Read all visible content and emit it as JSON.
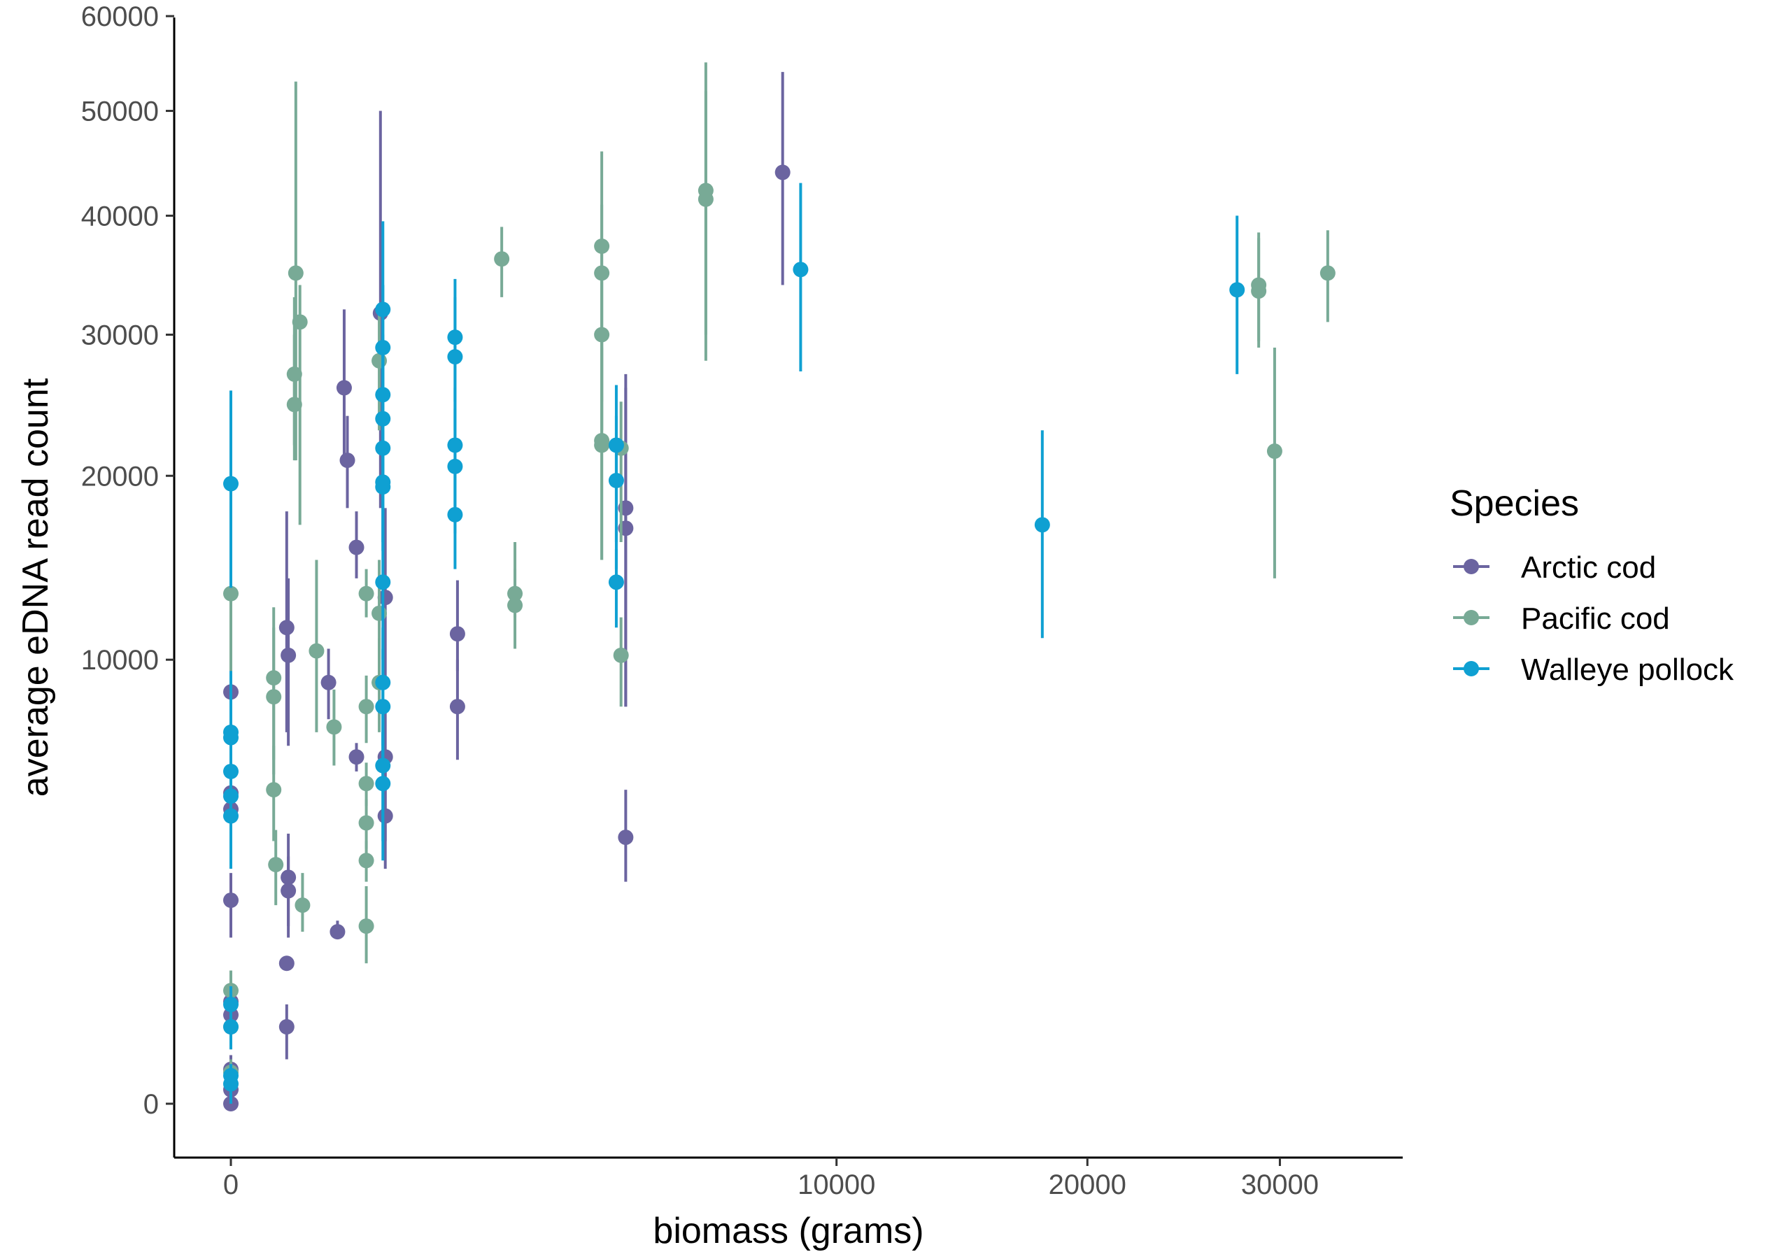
{
  "chart_data": {
    "type": "scatter",
    "title": "",
    "xlabel": "biomass (grams)",
    "ylabel": "average eDNA read count",
    "x_scale": "sqrt",
    "y_scale": "sqrt",
    "xlim": [
      0,
      36000
    ],
    "ylim": [
      0,
      60000
    ],
    "x_ticks": [
      0,
      10000,
      20000,
      30000
    ],
    "x_tick_labels": [
      "0",
      "10000",
      "20000",
      "30000"
    ],
    "y_ticks": [
      0,
      10000,
      20000,
      30000,
      40000,
      50000,
      60000
    ],
    "y_tick_labels": [
      "0",
      "10000",
      "20000",
      "30000",
      "40000",
      "50000",
      "60000"
    ],
    "grid": false,
    "error_bars": true,
    "legend": {
      "title": "Species",
      "position": "right"
    },
    "series": [
      {
        "name": "Arctic cod",
        "color": "#6b64a0",
        "points": [
          {
            "x": 0,
            "y": 8600,
            "lo": 6100,
            "hi": 10600
          },
          {
            "x": 0,
            "y": 4900,
            "lo": 3400,
            "hi": 6200
          },
          {
            "x": 0,
            "y": 4400,
            "lo": 2900,
            "hi": 5600
          },
          {
            "x": 0,
            "y": 2100,
            "lo": 1400,
            "hi": 2700
          },
          {
            "x": 0,
            "y": 530,
            "lo": 300,
            "hi": 800
          },
          {
            "x": 0,
            "y": 400,
            "lo": 200,
            "hi": 600
          },
          {
            "x": 0,
            "y": 60,
            "lo": 0,
            "hi": 120
          },
          {
            "x": 0,
            "y": 10,
            "lo": 0,
            "hi": 30
          },
          {
            "x": 0,
            "y": 0,
            "lo": 0,
            "hi": 10
          },
          {
            "x": 85,
            "y": 11500,
            "lo": 7000,
            "hi": 17800
          },
          {
            "x": 90,
            "y": 10200,
            "lo": 6500,
            "hi": 14000
          },
          {
            "x": 90,
            "y": 2600,
            "lo": 1600,
            "hi": 3700
          },
          {
            "x": 90,
            "y": 2300,
            "lo": 1400,
            "hi": 3100
          },
          {
            "x": 85,
            "y": 1000,
            "lo": 900,
            "hi": 1100
          },
          {
            "x": 85,
            "y": 300,
            "lo": 100,
            "hi": 500
          },
          {
            "x": 260,
            "y": 9000,
            "lo": 7500,
            "hi": 10500
          },
          {
            "x": 310,
            "y": 1500,
            "lo": 1400,
            "hi": 1700
          },
          {
            "x": 350,
            "y": 26000,
            "lo": 21000,
            "hi": 32000
          },
          {
            "x": 370,
            "y": 21000,
            "lo": 18000,
            "hi": 24000
          },
          {
            "x": 430,
            "y": 15700,
            "lo": 14000,
            "hi": 17800
          },
          {
            "x": 430,
            "y": 6100,
            "lo": 5600,
            "hi": 6600
          },
          {
            "x": 610,
            "y": 31700,
            "lo": 18000,
            "hi": 50000
          },
          {
            "x": 650,
            "y": 13000,
            "lo": 9000,
            "hi": 18000
          },
          {
            "x": 650,
            "y": 6100,
            "lo": 3500,
            "hi": 8000
          },
          {
            "x": 650,
            "y": 4200,
            "lo": 2800,
            "hi": 5800
          },
          {
            "x": 1400,
            "y": 11200,
            "lo": 9500,
            "hi": 13900
          },
          {
            "x": 1400,
            "y": 8000,
            "lo": 6000,
            "hi": 10000
          },
          {
            "x": 4250,
            "y": 18000,
            "lo": 8000,
            "hi": 27000
          },
          {
            "x": 4250,
            "y": 16800,
            "lo": 8000,
            "hi": 26000
          },
          {
            "x": 4250,
            "y": 3600,
            "lo": 2500,
            "hi": 5000
          },
          {
            "x": 8300,
            "y": 44000,
            "lo": 34000,
            "hi": 54000
          }
        ]
      },
      {
        "name": "Pacific cod",
        "color": "#78aa96",
        "points": [
          {
            "x": 0,
            "y": 13200,
            "lo": 6000,
            "hi": 16800
          },
          {
            "x": 0,
            "y": 650,
            "lo": 400,
            "hi": 900
          },
          {
            "x": 0,
            "y": 300,
            "lo": 150,
            "hi": 500
          },
          {
            "x": 0,
            "y": 50,
            "lo": 0,
            "hi": 100
          },
          {
            "x": 50,
            "y": 9200,
            "lo": 6000,
            "hi": 12500
          },
          {
            "x": 50,
            "y": 8400,
            "lo": 5500,
            "hi": 11500
          },
          {
            "x": 50,
            "y": 5000,
            "lo": 3500,
            "hi": 6500
          },
          {
            "x": 55,
            "y": 2900,
            "lo": 2000,
            "hi": 3800
          },
          {
            "x": 115,
            "y": 35000,
            "lo": 21000,
            "hi": 53000
          },
          {
            "x": 130,
            "y": 31000,
            "lo": 17000,
            "hi": 34000
          },
          {
            "x": 110,
            "y": 27000,
            "lo": 22000,
            "hi": 33000
          },
          {
            "x": 110,
            "y": 24800,
            "lo": 21000,
            "hi": 30000
          },
          {
            "x": 140,
            "y": 2000,
            "lo": 1500,
            "hi": 2700
          },
          {
            "x": 200,
            "y": 10400,
            "lo": 7000,
            "hi": 15000
          },
          {
            "x": 290,
            "y": 7200,
            "lo": 5800,
            "hi": 8700
          },
          {
            "x": 500,
            "y": 13200,
            "lo": 12000,
            "hi": 14500
          },
          {
            "x": 500,
            "y": 8000,
            "lo": 6600,
            "hi": 9300
          },
          {
            "x": 500,
            "y": 5200,
            "lo": 4500,
            "hi": 5900
          },
          {
            "x": 500,
            "y": 4000,
            "lo": 3300,
            "hi": 4700
          },
          {
            "x": 500,
            "y": 3000,
            "lo": 2500,
            "hi": 3500
          },
          {
            "x": 500,
            "y": 1600,
            "lo": 1000,
            "hi": 2400
          },
          {
            "x": 600,
            "y": 28000,
            "lo": 23000,
            "hi": 32000
          },
          {
            "x": 600,
            "y": 12200,
            "lo": 9000,
            "hi": 15000
          },
          {
            "x": 600,
            "y": 9000,
            "lo": 7000,
            "hi": 11000
          },
          {
            "x": 2000,
            "y": 36200,
            "lo": 33000,
            "hi": 39000
          },
          {
            "x": 2200,
            "y": 13200,
            "lo": 12000,
            "hi": 16000
          },
          {
            "x": 2200,
            "y": 12600,
            "lo": 10500,
            "hi": 14500
          },
          {
            "x": 3750,
            "y": 37300,
            "lo": 23000,
            "hi": 46000
          },
          {
            "x": 3750,
            "y": 35000,
            "lo": 23000,
            "hi": 41000
          },
          {
            "x": 3750,
            "y": 30000,
            "lo": 25000,
            "hi": 35000
          },
          {
            "x": 3750,
            "y": 22300,
            "lo": 15000,
            "hi": 30000
          },
          {
            "x": 3750,
            "y": 22000,
            "lo": 15000,
            "hi": 29000
          },
          {
            "x": 4150,
            "y": 21800,
            "lo": 16000,
            "hi": 25000
          },
          {
            "x": 4150,
            "y": 10200,
            "lo": 8000,
            "hi": 12000
          },
          {
            "x": 6150,
            "y": 42300,
            "lo": 28000,
            "hi": 55000
          },
          {
            "x": 6150,
            "y": 41500,
            "lo": 30000,
            "hi": 52000
          },
          {
            "x": 28800,
            "y": 34000,
            "lo": 29500,
            "hi": 38000
          },
          {
            "x": 28800,
            "y": 33500,
            "lo": 29000,
            "hi": 38500
          },
          {
            "x": 29700,
            "y": 21600,
            "lo": 14000,
            "hi": 29000
          },
          {
            "x": 32800,
            "y": 35000,
            "lo": 31000,
            "hi": 38700
          }
        ]
      },
      {
        "name": "Walleye pollock",
        "color": "#0fa0d2",
        "points": [
          {
            "x": 0,
            "y": 19500,
            "lo": 13500,
            "hi": 25800
          },
          {
            "x": 0,
            "y": 7000,
            "lo": 4000,
            "hi": 9500
          },
          {
            "x": 0,
            "y": 6800,
            "lo": 4500,
            "hi": 8200
          },
          {
            "x": 0,
            "y": 5600,
            "lo": 3800,
            "hi": 7300
          },
          {
            "x": 0,
            "y": 4800,
            "lo": 3500,
            "hi": 6200
          },
          {
            "x": 0,
            "y": 4200,
            "lo": 2800,
            "hi": 5600
          },
          {
            "x": 0,
            "y": 500,
            "lo": 300,
            "hi": 700
          },
          {
            "x": 0,
            "y": 300,
            "lo": 150,
            "hi": 450
          },
          {
            "x": 0,
            "y": 40,
            "lo": 0,
            "hi": 80
          },
          {
            "x": 0,
            "y": 20,
            "lo": 0,
            "hi": 40
          },
          {
            "x": 630,
            "y": 32000,
            "lo": 26000,
            "hi": 39500
          },
          {
            "x": 630,
            "y": 29000,
            "lo": 24000,
            "hi": 34000
          },
          {
            "x": 630,
            "y": 25500,
            "lo": 21000,
            "hi": 30000
          },
          {
            "x": 630,
            "y": 23800,
            "lo": 19000,
            "hi": 28000
          },
          {
            "x": 630,
            "y": 21800,
            "lo": 18000,
            "hi": 26000
          },
          {
            "x": 630,
            "y": 19600,
            "lo": 16000,
            "hi": 23000
          },
          {
            "x": 630,
            "y": 19300,
            "lo": 15500,
            "hi": 22500
          },
          {
            "x": 630,
            "y": 13800,
            "lo": 10000,
            "hi": 18000
          },
          {
            "x": 630,
            "y": 9000,
            "lo": 6500,
            "hi": 11500
          },
          {
            "x": 630,
            "y": 8000,
            "lo": 5500,
            "hi": 10500
          },
          {
            "x": 630,
            "y": 5800,
            "lo": 3500,
            "hi": 8000
          },
          {
            "x": 630,
            "y": 5200,
            "lo": 3000,
            "hi": 7000
          },
          {
            "x": 1370,
            "y": 29800,
            "lo": 25000,
            "hi": 34500
          },
          {
            "x": 1370,
            "y": 28300,
            "lo": 23000,
            "hi": 33000
          },
          {
            "x": 1370,
            "y": 22000,
            "lo": 18000,
            "hi": 26000
          },
          {
            "x": 1370,
            "y": 20600,
            "lo": 16500,
            "hi": 24500
          },
          {
            "x": 1370,
            "y": 17600,
            "lo": 14500,
            "hi": 21000
          },
          {
            "x": 4050,
            "y": 22000,
            "lo": 16000,
            "hi": 26200
          },
          {
            "x": 4050,
            "y": 19700,
            "lo": 14500,
            "hi": 24000
          },
          {
            "x": 4050,
            "y": 13800,
            "lo": 11500,
            "hi": 15600
          },
          {
            "x": 8850,
            "y": 35300,
            "lo": 27200,
            "hi": 43000
          },
          {
            "x": 17950,
            "y": 17000,
            "lo": 11000,
            "hi": 23000
          },
          {
            "x": 27600,
            "y": 33600,
            "lo": 27000,
            "hi": 40000
          }
        ]
      }
    ]
  }
}
